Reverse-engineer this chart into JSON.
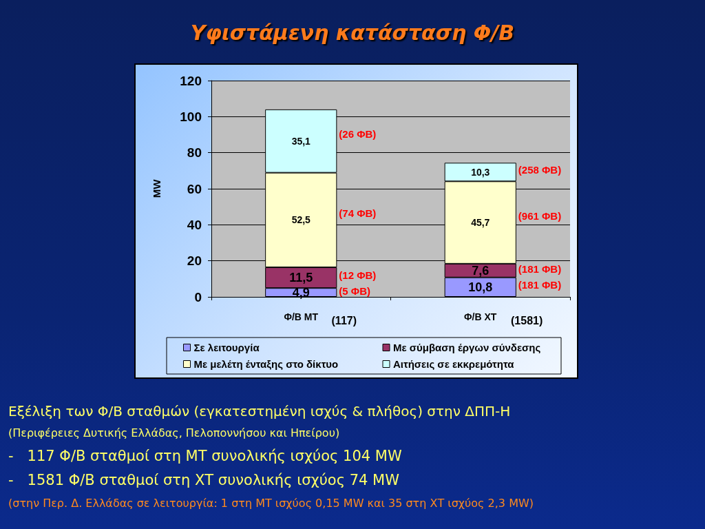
{
  "chart_data": {
    "type": "bar",
    "title": "Υφιστάμενη κατάσταση Φ/Β",
    "ylabel": "MW",
    "categories": [
      "Φ/Β ΜΤ",
      "Φ/Β ΧΤ"
    ],
    "stacked": true,
    "series": [
      {
        "name": "Σε λειτουργία",
        "color": "#9999ff",
        "values": [
          4.9,
          10.8
        ],
        "value_labels": [
          "4,9",
          "10,8"
        ]
      },
      {
        "name": "Με σύμβαση έργων σύνδεσης",
        "color": "#993366",
        "values": [
          11.5,
          7.6
        ],
        "value_labels": [
          "11,5",
          "7,6"
        ]
      },
      {
        "name": "Με μελέτη ένταξης στο δίκτυο",
        "color": "#ffffcc",
        "values": [
          52.5,
          45.7
        ],
        "value_labels": [
          "52,5",
          "45,7"
        ]
      },
      {
        "name": "Αιτήσεις σε εκκρεμότητα",
        "color": "#ccffff",
        "values": [
          35.1,
          10.3
        ],
        "value_labels": [
          "35,1",
          "10,3"
        ]
      }
    ],
    "ylim": [
      0,
      120
    ],
    "yticks": [
      0,
      20,
      40,
      60,
      80,
      100,
      120
    ],
    "grid": "y",
    "legend": "bottom",
    "annotations": [
      "(117)",
      "(1581)",
      "(5 ΦΒ)",
      "(12 ΦΒ)",
      "(74 ΦΒ)",
      "(26 ΦΒ)",
      "(181 ΦΒ)",
      "(181 ΦΒ)",
      "(961 ΦΒ)",
      "(258 ΦΒ)",
      "Εξέλιξη των Φ/Β σταθμών (εγκατεστημένη ισχύς & πλήθος) στην ΔΠΠ-Η",
      "(Περιφέρειες Δυτικής Ελλάδας, Πελοποννήσου και Ηπείρου)",
      "-   117 Φ/Β σταθμοί στη ΜΤ συνολικής ισχύος 104 MW",
      "-   1581 Φ/Β σταθμοί στη ΧΤ συνολικής ισχύος 74 MW",
      "(στην Περ. Δ. Ελλάδας σε λειτουργία: 1 στη ΜΤ ισχύος 0,15 MW και 35 στη ΧΤ ισχύος 2,3 MW)"
    ]
  }
}
